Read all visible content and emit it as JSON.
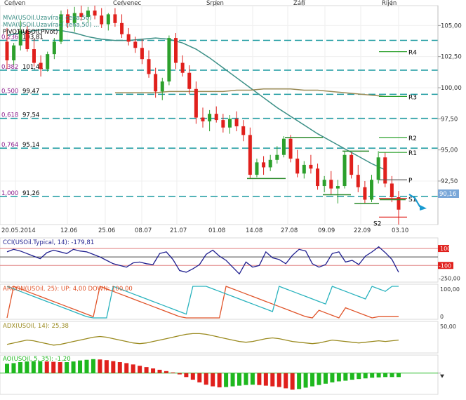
{
  "colors": {
    "up_candle": "#2ca02c",
    "down_candle": "#e0201c",
    "fib_line": "#1a9aa0",
    "mva_short": "#3b8f86",
    "mva_long": "#9a8a55",
    "cci_line": "#1f1f8f",
    "aroon_up": "#e0542a",
    "aroon_down": "#28b2bd",
    "adx_line": "#9a8a1f",
    "ao_up": "#1fb81f",
    "ao_down": "#e0201c",
    "price_label_bg": "#7aa7d8"
  },
  "top_months": [
    "Červen",
    "Červenec",
    "Srpen",
    "Září",
    "Říjen"
  ],
  "legend": {
    "line1": "MVA(USOil.Uzavírací cena,50)",
    "line2": "MVA(USOil.Uzavírací cena,50) ...",
    "line3": "PIVOT(USOil,Pivot)"
  },
  "fib_labels": [
    {
      "ratio": "0,236",
      "value": "103,81"
    },
    {
      "ratio": "0,382",
      "value": "101,41"
    },
    {
      "ratio": "0,500",
      "value": "99,47"
    },
    {
      "ratio": "0,618",
      "value": "97,54"
    },
    {
      "ratio": "0,764",
      "value": "95,14"
    },
    {
      "ratio": "1,000",
      "value": "91,26"
    }
  ],
  "pivot_labels": [
    "R4",
    "R3",
    "R2",
    "R1",
    "P",
    "S1",
    "S2"
  ],
  "price_axis": [
    "105,00",
    "102,50",
    "100,00",
    "97,50",
    "95,00",
    "92,50"
  ],
  "current_price": "90,16",
  "date_axis": [
    "20.05.2014",
    "12.06",
    "25.06",
    "08.07",
    "21.07",
    "01.08",
    "14.08",
    "27.08",
    "09.09",
    "22.09",
    "03.10"
  ],
  "cci": {
    "title": "CCI(USOil.Typical, 14): -179,81",
    "levels": [
      "100",
      "-100",
      "-250,00"
    ]
  },
  "aroon": {
    "title": "AROON(USOil, 25): UP: 4,00 DOWN: 100,00",
    "levels": [
      "100,00",
      "0"
    ]
  },
  "adx": {
    "title": "ADX(USOil, 14): 25,38",
    "levels": [
      "50,00"
    ]
  },
  "ao": {
    "title": "AO(USOil, 5, 35): -1,20"
  },
  "chart_data": {
    "type": "candlestick",
    "price_range": [
      89,
      106.6
    ],
    "fib_levels": [
      103.81,
      101.41,
      99.47,
      97.54,
      95.14,
      91.26
    ],
    "candles": [
      [
        103.7,
        104.8,
        101.5,
        102.2
      ],
      [
        102.2,
        103.6,
        101.8,
        103.4
      ],
      [
        103.4,
        105.4,
        103.0,
        104.6
      ],
      [
        104.6,
        105.0,
        102.9,
        103.1
      ],
      [
        103.1,
        103.9,
        101.7,
        102.0
      ],
      [
        102.0,
        102.6,
        100.9,
        101.5
      ],
      [
        101.5,
        102.9,
        101.3,
        102.7
      ],
      [
        102.7,
        104.0,
        102.3,
        103.7
      ],
      [
        103.7,
        106.2,
        103.5,
        105.9
      ],
      [
        105.9,
        106.3,
        104.8,
        105.2
      ],
      [
        105.2,
        106.5,
        104.5,
        106.0
      ],
      [
        106.0,
        106.6,
        105.4,
        105.7
      ],
      [
        105.7,
        106.5,
        105.2,
        106.2
      ],
      [
        106.2,
        106.6,
        105.5,
        105.8
      ],
      [
        105.8,
        106.4,
        104.8,
        105.1
      ],
      [
        105.1,
        106.0,
        104.6,
        105.9
      ],
      [
        105.9,
        106.4,
        104.9,
        105.2
      ],
      [
        105.2,
        105.9,
        104.0,
        104.3
      ],
      [
        104.3,
        104.8,
        103.4,
        103.7
      ],
      [
        103.7,
        104.1,
        102.8,
        103.2
      ],
      [
        103.2,
        103.9,
        101.9,
        102.3
      ],
      [
        102.3,
        103.0,
        100.8,
        101.1
      ],
      [
        101.1,
        101.6,
        99.2,
        99.7
      ],
      [
        99.7,
        100.8,
        99.0,
        100.5
      ],
      [
        100.5,
        104.2,
        100.2,
        104.0
      ],
      [
        104.0,
        104.4,
        101.5,
        102.0
      ],
      [
        102.0,
        102.6,
        100.9,
        101.2
      ],
      [
        101.2,
        101.8,
        99.5,
        99.9
      ],
      [
        99.9,
        100.5,
        97.1,
        97.6
      ],
      [
        97.6,
        98.4,
        96.8,
        97.3
      ],
      [
        97.3,
        98.2,
        96.5,
        97.9
      ],
      [
        97.9,
        98.5,
        97.2,
        97.4
      ],
      [
        97.4,
        97.9,
        96.4,
        96.8
      ],
      [
        96.8,
        97.8,
        96.3,
        97.5
      ],
      [
        97.5,
        98.1,
        96.5,
        96.9
      ],
      [
        96.9,
        97.4,
        95.7,
        96.2
      ],
      [
        96.2,
        96.8,
        92.7,
        93.0
      ],
      [
        93.0,
        94.3,
        92.8,
        94.0
      ],
      [
        94.0,
        94.5,
        93.0,
        93.6
      ],
      [
        93.6,
        94.6,
        93.3,
        94.2
      ],
      [
        94.2,
        95.3,
        93.9,
        94.6
      ],
      [
        94.6,
        96.1,
        94.4,
        95.9
      ],
      [
        95.9,
        96.2,
        94.0,
        94.3
      ],
      [
        94.3,
        95.0,
        92.8,
        93.1
      ],
      [
        93.1,
        94.1,
        92.7,
        93.8
      ],
      [
        93.8,
        94.6,
        93.1,
        93.5
      ],
      [
        93.5,
        93.9,
        91.8,
        92.1
      ],
      [
        92.1,
        92.9,
        91.6,
        92.6
      ],
      [
        92.6,
        93.3,
        91.4,
        91.9
      ],
      [
        91.9,
        92.6,
        90.7,
        92.1
      ],
      [
        92.1,
        94.9,
        91.9,
        94.6
      ],
      [
        94.6,
        94.8,
        92.7,
        93.0
      ],
      [
        93.0,
        93.8,
        91.6,
        92.0
      ],
      [
        92.0,
        92.5,
        90.7,
        91.0
      ],
      [
        91.0,
        93.0,
        90.8,
        92.6
      ],
      [
        92.6,
        94.9,
        92.3,
        94.4
      ],
      [
        94.4,
        94.8,
        92.0,
        92.3
      ],
      [
        92.3,
        92.9,
        90.8,
        91.2
      ],
      [
        91.2,
        91.7,
        89.0,
        90.2
      ]
    ],
    "mva_short": [
      104.2,
      104.4,
      104.6,
      104.7,
      104.6,
      104.4,
      104.1,
      103.9,
      103.8,
      103.8,
      103.9,
      104.0,
      103.9,
      103.6,
      103.1,
      102.4,
      101.6,
      100.8,
      100.0,
      99.2,
      98.4,
      97.7,
      97.0,
      96.3,
      95.7,
      95.1,
      94.5,
      93.9,
      93.4
    ],
    "mva_long": [
      99.6,
      99.6,
      99.6,
      99.6,
      99.7,
      99.7,
      99.7,
      99.7,
      99.7,
      99.8,
      99.8,
      99.9,
      99.9,
      99.9,
      99.8,
      99.8,
      99.7,
      99.6,
      99.5,
      99.4,
      99.3
    ],
    "pivot_levels": {
      "R4": 102.9,
      "R3": 99.3,
      "R2": 96.0,
      "R1": 94.8,
      "P": 92.6,
      "S1": 91.1,
      "S2": 89.6
    },
    "cci_values": [
      60,
      90,
      70,
      40,
      10,
      -20,
      50,
      80,
      60,
      40,
      90,
      70,
      60,
      30,
      0,
      -40,
      -80,
      -100,
      -120,
      -70,
      -60,
      -80,
      -90,
      40,
      60,
      -30,
      -160,
      -180,
      -140,
      -90,
      30,
      80,
      10,
      -40,
      -120,
      -200,
      -60,
      -120,
      -100,
      60,
      -10,
      -30,
      -80,
      20,
      90,
      70,
      -80,
      -120,
      -90,
      40,
      60,
      -60,
      -40,
      -90,
      10,
      60,
      120,
      50,
      -30,
      -180
    ],
    "aroon_up": [
      0,
      100,
      92,
      84,
      76,
      68,
      60,
      52,
      44,
      36,
      28,
      20,
      12,
      4,
      100,
      92,
      84,
      76,
      68,
      60,
      52,
      44,
      36,
      28,
      20,
      12,
      4,
      0,
      0,
      0,
      0,
      0,
      0,
      100,
      92,
      84,
      76,
      68,
      60,
      52,
      44,
      36,
      28,
      20,
      12,
      4,
      0,
      24,
      16,
      8,
      0,
      32,
      24,
      16,
      8,
      0,
      4,
      4,
      4,
      4
    ],
    "aroon_down": [
      100,
      92,
      84,
      76,
      68,
      60,
      52,
      44,
      36,
      28,
      20,
      12,
      4,
      0,
      0,
      0,
      100,
      92,
      84,
      76,
      68,
      60,
      52,
      44,
      36,
      28,
      20,
      12,
      100,
      100,
      100,
      92,
      84,
      76,
      68,
      60,
      52,
      44,
      36,
      28,
      20,
      100,
      92,
      84,
      76,
      68,
      60,
      52,
      44,
      100,
      92,
      84,
      76,
      68,
      60,
      100,
      92,
      84,
      100,
      100
    ],
    "adx_values": [
      20,
      22,
      24,
      26,
      25,
      23,
      21,
      19,
      20,
      22,
      24,
      26,
      28,
      30,
      31,
      30,
      28,
      26,
      24,
      22,
      21,
      22,
      24,
      26,
      28,
      30,
      32,
      34,
      35,
      35,
      34,
      32,
      30,
      28,
      26,
      24,
      23,
      24,
      26,
      28,
      29,
      28,
      26,
      24,
      23,
      22,
      21,
      22,
      24,
      26,
      25,
      24,
      23,
      22,
      23,
      24,
      25,
      24,
      25,
      26
    ],
    "ao_values": [
      2.8,
      3.0,
      3.3,
      3.5,
      3.6,
      3.6,
      3.5,
      3.4,
      3.3,
      3.3,
      3.5,
      3.8,
      4.0,
      4.2,
      4.1,
      3.9,
      3.6,
      3.3,
      3.0,
      2.6,
      2.2,
      1.8,
      1.4,
      1.0,
      0.6,
      0.2,
      -0.4,
      -1.2,
      -2.0,
      -2.8,
      -3.5,
      -4.0,
      -4.3,
      -4.2,
      -4.0,
      -3.8,
      -3.6,
      -3.5,
      -3.6,
      -3.8,
      -4.0,
      -4.2,
      -4.6,
      -5.0,
      -4.8,
      -4.4,
      -4.0,
      -3.6,
      -3.2,
      -2.8,
      -2.5,
      -2.3,
      -2.0,
      -1.8,
      -1.6,
      -1.4,
      -1.3,
      -1.2,
      -1.2,
      -1.2
    ]
  }
}
